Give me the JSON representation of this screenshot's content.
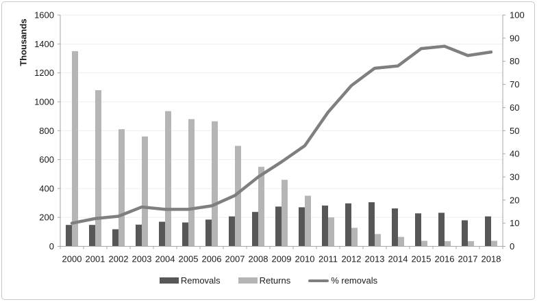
{
  "chart_data": {
    "type": "bar+line combo",
    "title": "",
    "categories": [
      "2000",
      "2001",
      "2002",
      "2003",
      "2004",
      "2005",
      "2006",
      "2007",
      "2008",
      "2009",
      "2010",
      "2011",
      "2012",
      "2013",
      "2014",
      "2015",
      "2016",
      "2017",
      "2018"
    ],
    "series": [
      {
        "name": "Removals",
        "type": "bar",
        "axis": "left",
        "color": "#575757",
        "values": [
          148,
          148,
          118,
          150,
          170,
          165,
          185,
          207,
          238,
          275,
          270,
          282,
          297,
          305,
          262,
          228,
          232,
          180,
          207
        ]
      },
      {
        "name": "Returns",
        "type": "bar",
        "axis": "left",
        "color": "#b5b5b5",
        "values": [
          1350,
          1080,
          810,
          760,
          935,
          880,
          865,
          695,
          550,
          460,
          350,
          200,
          128,
          85,
          65,
          38,
          36,
          36,
          38
        ]
      },
      {
        "name": "% removals",
        "type": "line",
        "axis": "right",
        "color": "#7f7f7f",
        "values": [
          10,
          12,
          13,
          17,
          16,
          16,
          17.5,
          22,
          30,
          36.5,
          43.5,
          58,
          69.5,
          77,
          78,
          85.5,
          86.5,
          82.5,
          84
        ]
      }
    ],
    "left_axis": {
      "label": "Thousands",
      "min": 0,
      "max": 1600,
      "tick_step": 200,
      "ticks": [
        0,
        200,
        400,
        600,
        800,
        1000,
        1200,
        1400,
        1600
      ]
    },
    "right_axis": {
      "label": "",
      "min": 0,
      "max": 100,
      "tick_step": 10,
      "ticks": [
        0,
        10,
        20,
        30,
        40,
        50,
        60,
        70,
        80,
        90,
        100
      ]
    },
    "grid": true,
    "legend_position": "bottom",
    "colors": {
      "axis": "#a6a6a6",
      "grid": "#ededed",
      "text": "#1a1a1a",
      "panel_border": "#c8c8c8",
      "background": "#ffffff"
    }
  },
  "legend": {
    "items": [
      {
        "label": "Removals"
      },
      {
        "label": "Returns"
      },
      {
        "label": "% removals"
      }
    ]
  }
}
